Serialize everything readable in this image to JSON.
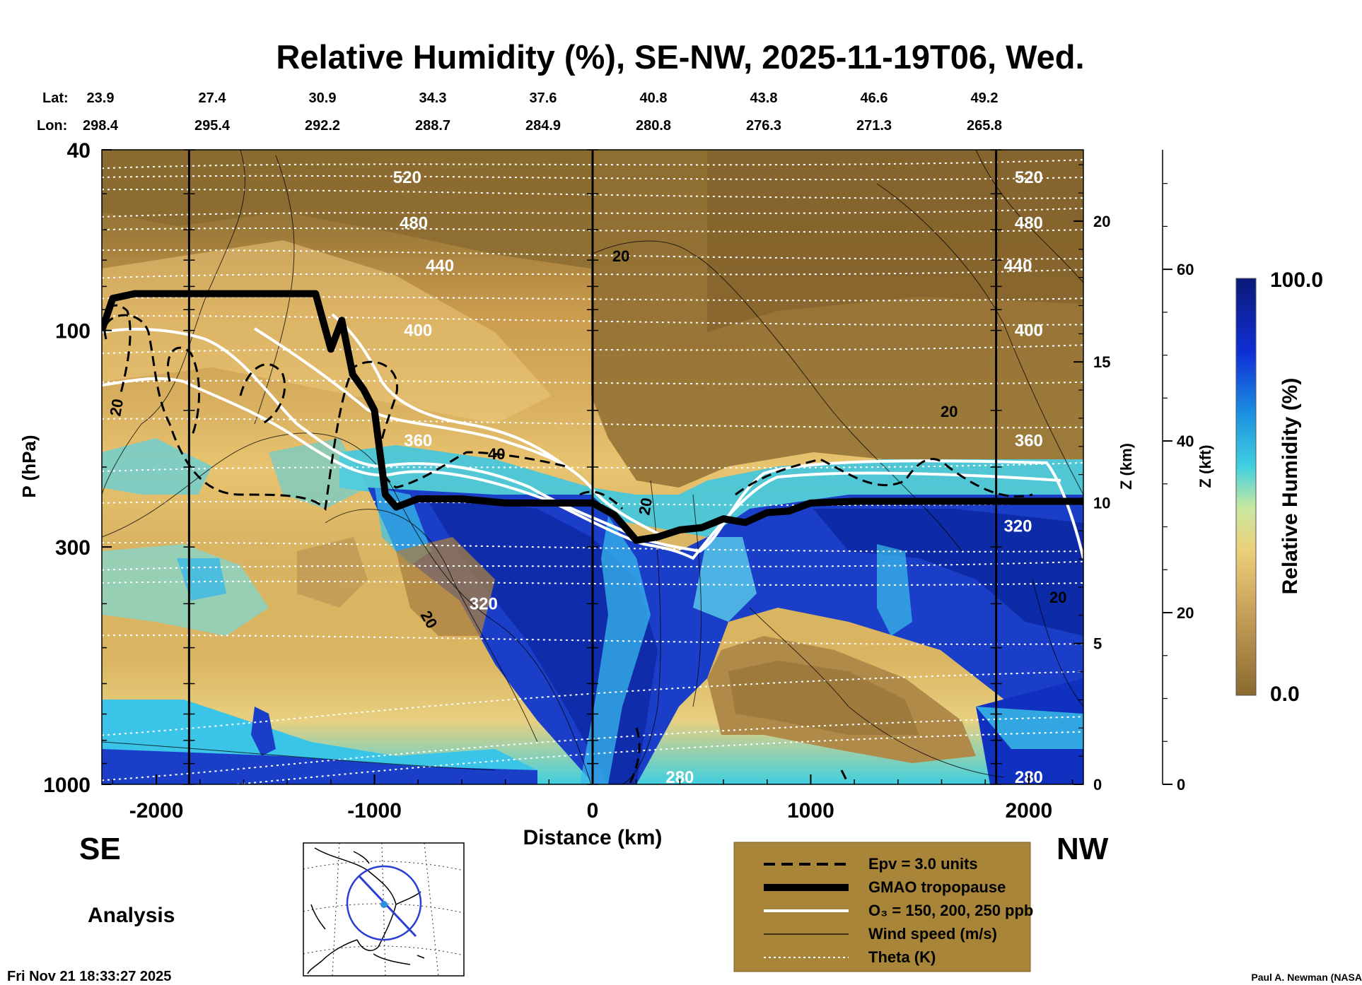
{
  "title": "Relative Humidity (%), SE-NW, 2025-11-19T06, Wed.",
  "lat_label": "Lat:",
  "lon_label": "Lon:",
  "lat_values": [
    "23.9",
    "27.4",
    "30.9",
    "34.3",
    "37.6",
    "40.8",
    "43.8",
    "46.6",
    "49.2"
  ],
  "lon_values": [
    "298.4",
    "295.4",
    "292.2",
    "288.7",
    "284.9",
    "280.8",
    "276.3",
    "271.3",
    "265.8"
  ],
  "left_direction": "SE",
  "right_direction": "NW",
  "analysis_label": "Analysis",
  "timestamp": "Fri Nov 21 18:33:27 2025",
  "credit": "Paul A. Newman (NASA",
  "colors": {
    "dry": "#8a6a30",
    "mid": "#e8c470",
    "cyan": "#3fd0e0",
    "wet": "#0a2aa8",
    "legend_bg": "#a88538"
  },
  "legend": {
    "epv": "Epv = 3.0 units",
    "tropopause": "GMAO tropopause",
    "ozone": "O₃ = 150, 200, 250 ppb",
    "wind": "Wind speed (m/s)",
    "theta": "Theta (K)"
  },
  "colorbar": {
    "label": "Relative Humidity (%)",
    "max_label": "100.0",
    "min_label": "0.0"
  },
  "chart_data": {
    "type": "heatmap",
    "title": "Relative Humidity (%), SE-NW, 2025-11-19T06, Wed.",
    "xlabel": "Distance (km)",
    "ylabel": "P (hPa)",
    "y2label": "Z (km)",
    "y3label": "Z (kft)",
    "xlim": [
      -2250,
      2250
    ],
    "ylim": [
      1000,
      40
    ],
    "yscale": "log",
    "x_ticks": [
      -2000,
      -1000,
      0,
      1000,
      2000
    ],
    "x_tick_labels": [
      "-2000",
      "-1000",
      "0",
      "1000",
      "2000"
    ],
    "y_ticks": [
      40,
      100,
      300,
      1000
    ],
    "y_tick_labels": [
      "40",
      "100",
      "300",
      "1000"
    ],
    "z_km_ticks": [
      0,
      5,
      10,
      15,
      20
    ],
    "z_kft_ticks": [
      0,
      20,
      40,
      60
    ],
    "vertical_lines_x": [
      -1850,
      0,
      1850
    ],
    "tropopause": {
      "x": [
        -2250,
        -2200,
        -2100,
        -1900,
        -1700,
        -1500,
        -1270,
        -1200,
        -1150,
        -1100,
        -1050,
        -1000,
        -950,
        -900,
        -800,
        -600,
        -400,
        -200,
        0,
        100,
        200,
        300,
        400,
        500,
        600,
        700,
        800,
        900,
        1000,
        1200,
        1400,
        1600,
        1800,
        2000,
        2250
      ],
      "p": [
        100,
        85,
        83,
        83,
        83,
        83,
        83,
        110,
        95,
        125,
        135,
        150,
        230,
        245,
        235,
        235,
        240,
        240,
        240,
        255,
        290,
        285,
        275,
        272,
        260,
        265,
        252,
        250,
        240,
        238,
        238,
        238,
        238,
        238,
        238
      ]
    },
    "theta_contours": [
      {
        "value": 280,
        "label_pos": [
          400,
          965
        ]
      },
      {
        "value": 320,
        "label_pos": [
          -500,
          400
        ]
      },
      {
        "value": 360,
        "label_pos": [
          -800,
          175
        ]
      },
      {
        "value": 400,
        "label_pos": [
          -800,
          100
        ]
      },
      {
        "value": 440,
        "label_pos": [
          -700,
          72
        ]
      },
      {
        "value": 480,
        "label_pos": [
          -820,
          58
        ]
      },
      {
        "value": 520,
        "label_pos": [
          -850,
          46
        ]
      }
    ],
    "wind_labels": [
      "20",
      "20",
      "40",
      "20",
      "20",
      "20",
      "20"
    ],
    "colorbar_range": [
      0.0,
      100.0
    ]
  }
}
